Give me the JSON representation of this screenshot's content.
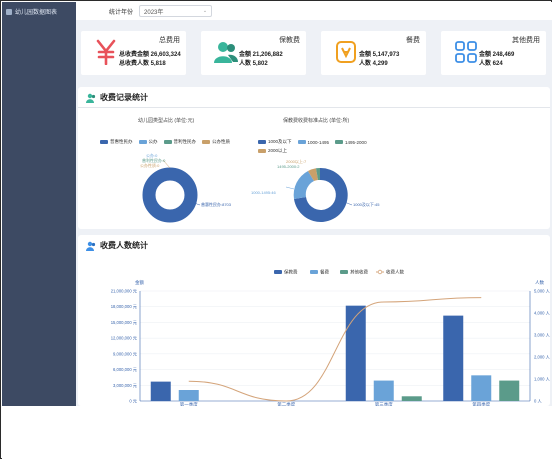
{
  "sidebar": {
    "items": [
      {
        "label": "幼儿园数据图表"
      }
    ]
  },
  "filter": {
    "label": "统计年份",
    "year": "2023年"
  },
  "colors": {
    "primary": "#3a66ad",
    "light": "#6aa3d8",
    "teal": "#5b9b8a",
    "tan": "#c9a06a",
    "line": "#d4a47a",
    "red": "#e8525a",
    "green": "#39b59b",
    "orange": "#f0a020",
    "blue": "#3d8fe6"
  },
  "cards": [
    {
      "icon": "yen-icon",
      "title": "总费用",
      "line1": "总收费金额 26,603,324",
      "line2": "总收费人数 5,818"
    },
    {
      "icon": "users-icon",
      "title": "保教费",
      "line1": "金额 21,206,882",
      "line2": "人数 5,802"
    },
    {
      "icon": "meal-icon",
      "title": "餐费",
      "line1": "金额 5,147,973",
      "line2": "人数 4,299"
    },
    {
      "icon": "grid-icon",
      "title": "其他费用",
      "line1": "金额 248,469",
      "line2": "人数 624"
    }
  ],
  "records_panel": {
    "title": "收费记录统计"
  },
  "pie1": {
    "title": "幼儿园类型占比 (单位:元)",
    "legend": [
      "普惠性民办",
      "公办",
      "普利性民办",
      "公办性质"
    ],
    "labels": {
      "main": "普惠性民办:8703",
      "a": "公办:0",
      "b": "普利性民办:0",
      "c": "公办性质:0"
    }
  },
  "pie2": {
    "title": "保教费收费标准占比 (单位:所)",
    "legend": [
      "1000及以下",
      "1000-1495",
      "1495-2000",
      "2000以上"
    ],
    "labels": {
      "main": "1000及以下:45",
      "a": "1000-1495:46",
      "b": "2000以上:7",
      "c": "1495-2000:2"
    }
  },
  "people_panel": {
    "title": "收费人数统计"
  },
  "chart_data": {
    "type": "bar",
    "categories": [
      "第一季度",
      "第二季度",
      "第三季度",
      "第四季度"
    ],
    "series": [
      {
        "name": "保教费",
        "values": [
          3700000,
          0,
          18200000,
          16300000
        ]
      },
      {
        "name": "餐费",
        "values": [
          2100000,
          0,
          3900000,
          4900000
        ]
      },
      {
        "name": "其他收费",
        "values": [
          0,
          0,
          900000,
          3900000
        ]
      },
      {
        "name": "收费人数",
        "type": "line",
        "axis": "right",
        "values": [
          900,
          0,
          4500,
          4700
        ]
      }
    ],
    "ylabel_left": "金额",
    "ylabel_right": "人数",
    "ylim": [
      0,
      21000000
    ],
    "y2lim": [
      0,
      5000
    ],
    "yticks": [
      "0 元",
      "3,000,000 元",
      "6,000,000 元",
      "9,000,000 元",
      "12,000,000 元",
      "15,000,000 元",
      "18,000,000 元",
      "21,000,000 元"
    ],
    "y2ticks": [
      "0 人",
      "1,000 人",
      "2,000 人",
      "3,000 人",
      "4,000 人",
      "5,000 人"
    ],
    "legend_position": "top-center"
  }
}
